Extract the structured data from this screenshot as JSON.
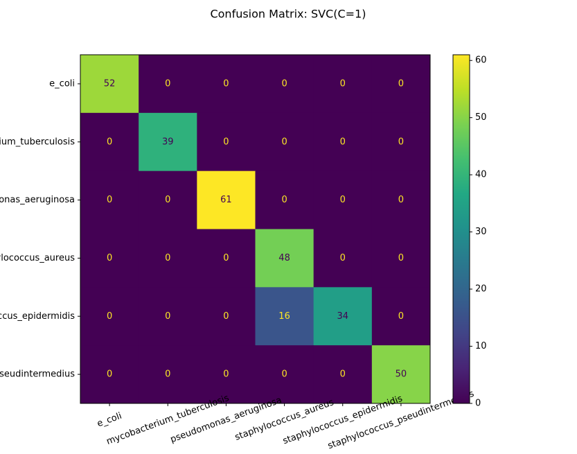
{
  "chart_data": {
    "type": "heatmap",
    "title": "Confusion Matrix: SVC(C=1)",
    "x_categories": [
      "e_coli",
      "mycobacterium_tuberculosis",
      "pseudomonas_aeruginosa",
      "staphylococcus_aureus",
      "staphylococcus_epidermidis",
      "staphylococcus_pseudintermedius"
    ],
    "y_categories": [
      "e_coli",
      "mycobacterium_tuberculosis",
      "pseudomonas_aeruginosa",
      "staphylococcus_aureus",
      "staphylococcus_epidermidis",
      "staphylococcus_pseudintermedius"
    ],
    "matrix": [
      [
        52,
        0,
        0,
        0,
        0,
        0
      ],
      [
        0,
        39,
        0,
        0,
        0,
        0
      ],
      [
        0,
        0,
        61,
        0,
        0,
        0
      ],
      [
        0,
        0,
        0,
        48,
        0,
        0
      ],
      [
        0,
        0,
        0,
        16,
        34,
        0
      ],
      [
        0,
        0,
        0,
        0,
        0,
        50
      ]
    ],
    "colormap": "viridis",
    "clim": [
      0,
      61
    ],
    "cticks": [
      0,
      10,
      20,
      30,
      40,
      50,
      60
    ]
  }
}
